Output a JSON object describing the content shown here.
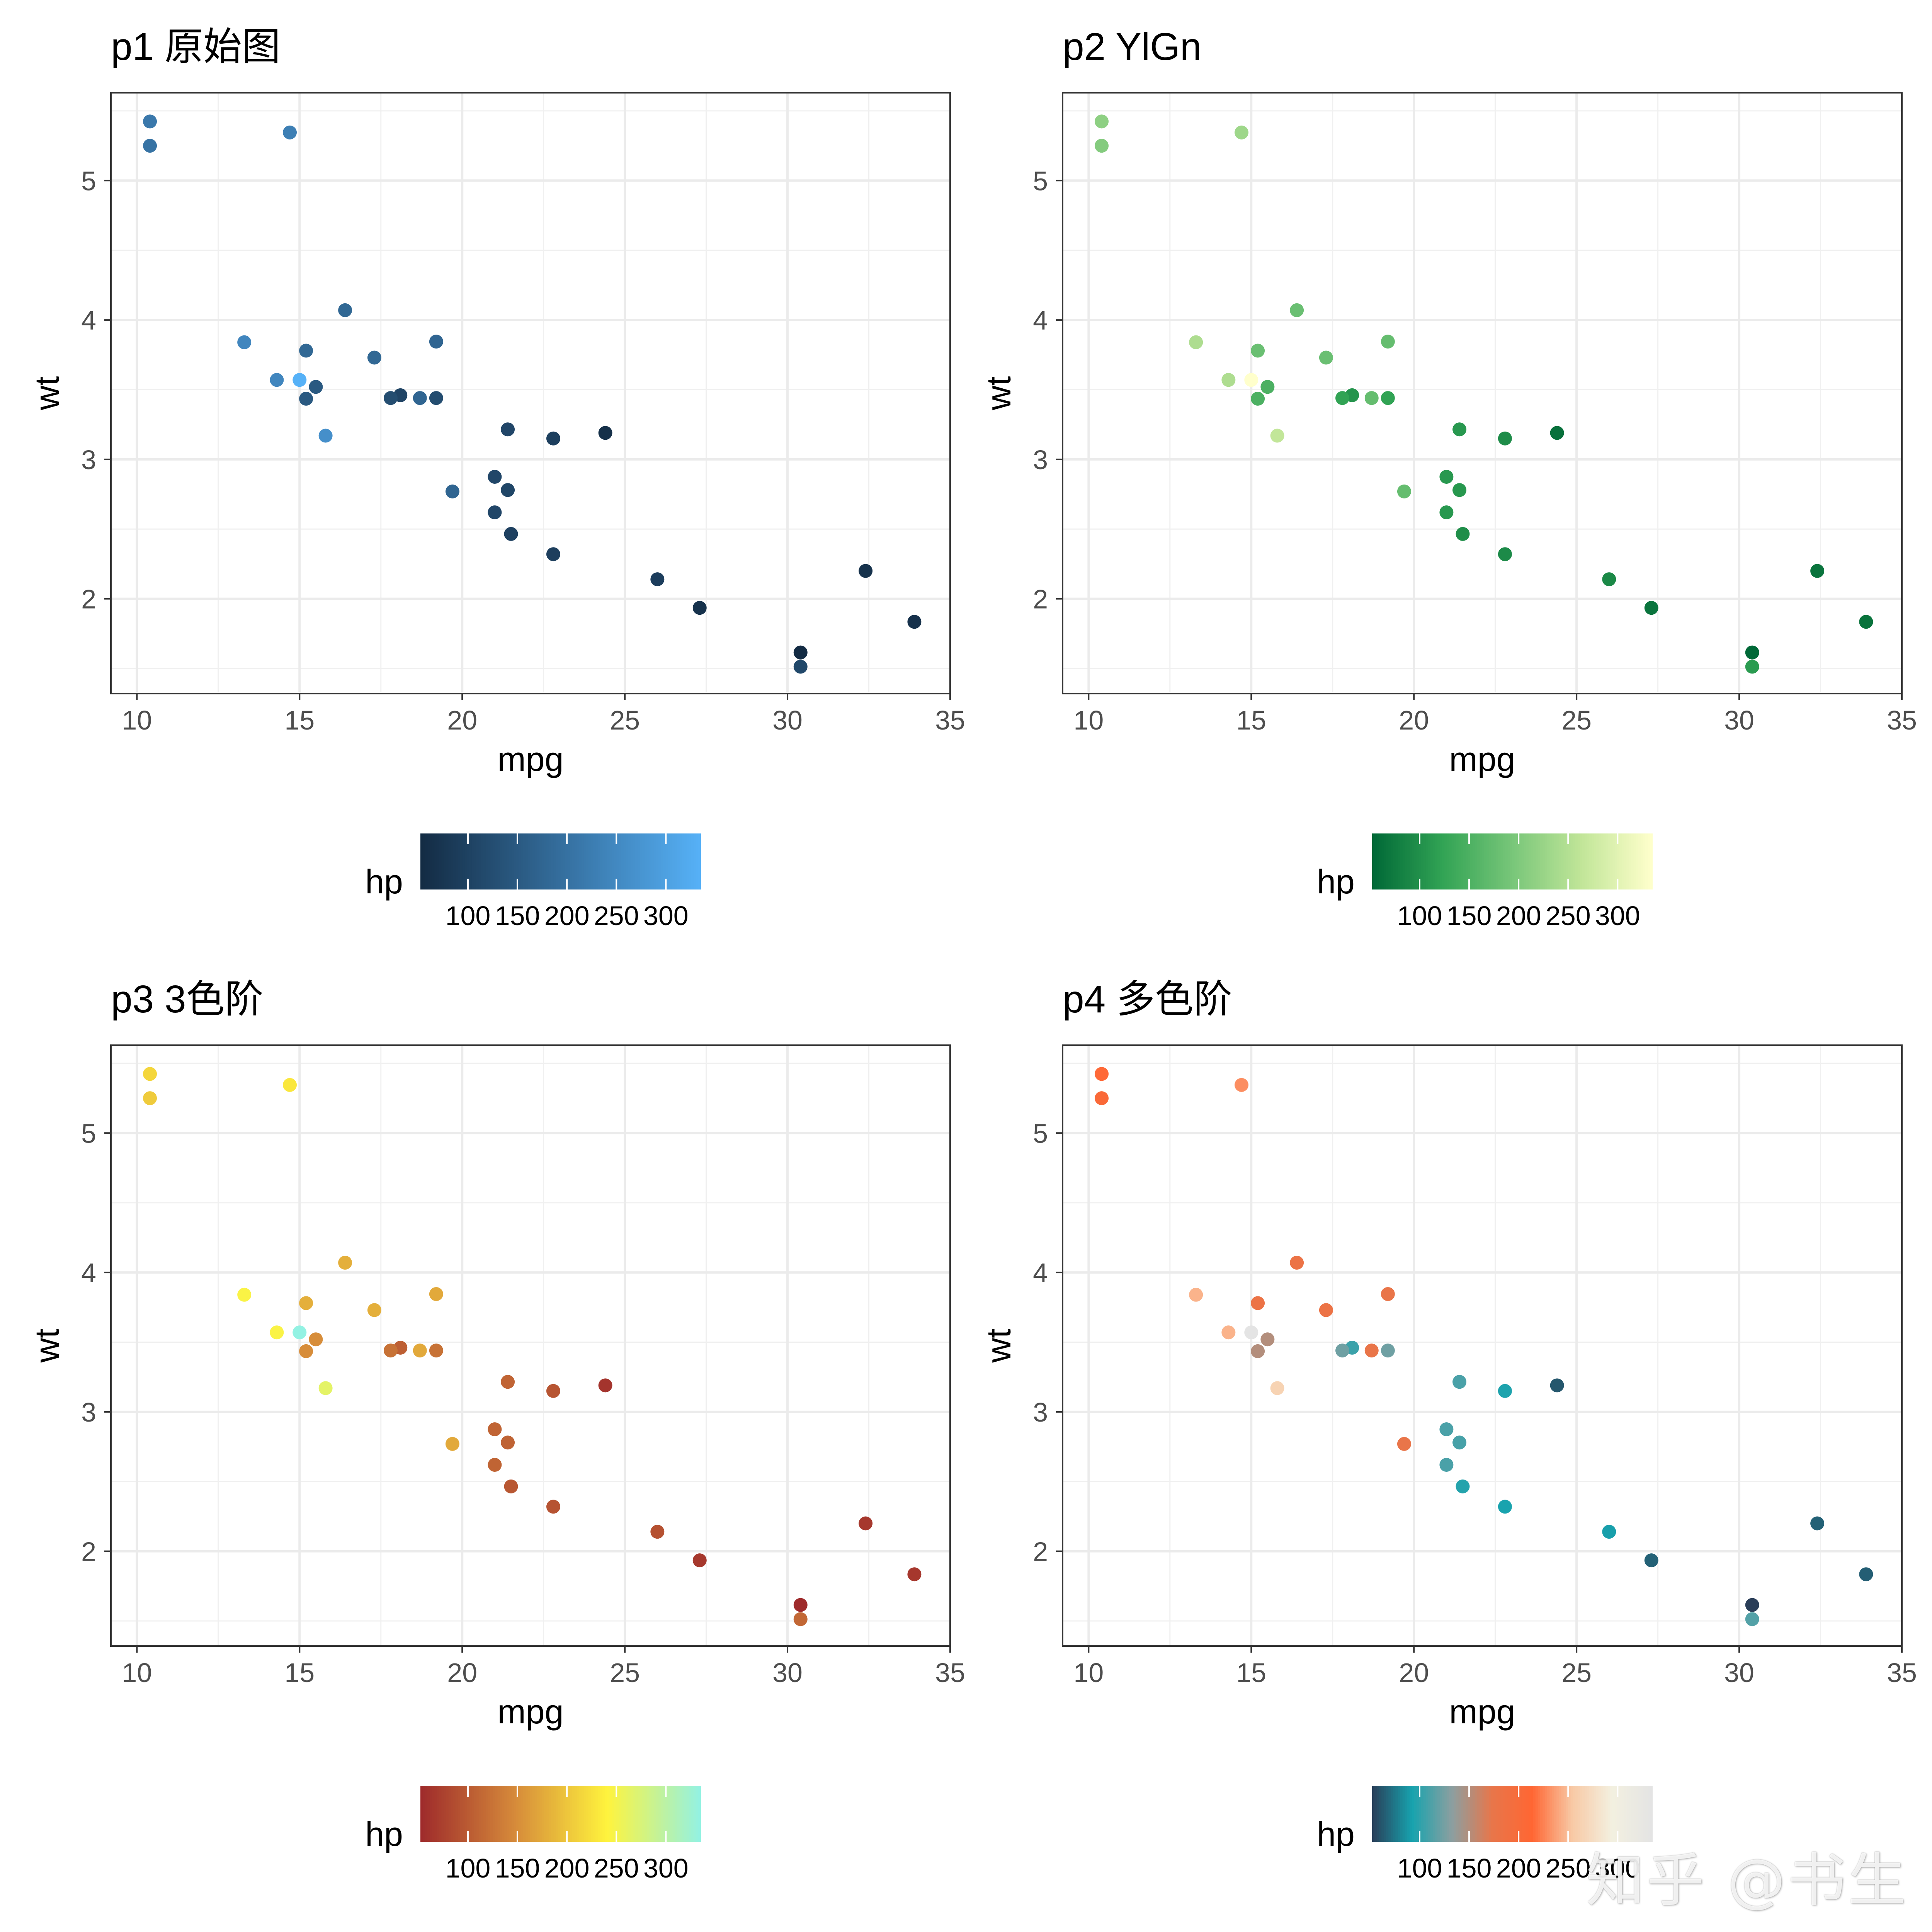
{
  "watermark": "知乎 @书生",
  "chart_data": [
    {
      "type": "scatter",
      "title": "p1 原始图",
      "xlabel": "mpg",
      "ylabel": "wt",
      "xlim": [
        9.2,
        35.0
      ],
      "ylim": [
        1.32,
        5.63
      ],
      "xticks": [
        10,
        15,
        20,
        25,
        30,
        35
      ],
      "yticks": [
        2,
        3,
        4,
        5
      ],
      "legend": {
        "title": "hp",
        "position": "bottom",
        "tick_labels": [
          "100",
          "150",
          "200",
          "250",
          "300"
        ],
        "range": [
          52,
          335
        ]
      },
      "colors": [
        "#132B43",
        "#56B1F7"
      ],
      "x": [
        21.0,
        21.0,
        22.8,
        21.4,
        18.7,
        18.1,
        14.3,
        24.4,
        22.8,
        19.2,
        17.8,
        16.4,
        17.3,
        15.2,
        10.4,
        10.4,
        14.7,
        32.4,
        30.4,
        33.9,
        21.5,
        15.5,
        15.2,
        13.3,
        19.2,
        27.3,
        26.0,
        30.4,
        15.8,
        19.7,
        15.0,
        21.4
      ],
      "y": [
        2.62,
        2.875,
        2.32,
        3.215,
        3.44,
        3.46,
        3.57,
        3.19,
        3.15,
        3.44,
        3.44,
        4.07,
        3.73,
        3.78,
        5.25,
        5.424,
        5.345,
        2.2,
        1.615,
        1.835,
        2.465,
        3.52,
        3.435,
        3.84,
        3.845,
        1.935,
        2.14,
        1.513,
        3.17,
        2.77,
        3.57,
        2.78
      ],
      "hp": [
        110,
        110,
        93,
        110,
        175,
        105,
        245,
        62,
        95,
        123,
        123,
        180,
        180,
        180,
        205,
        215,
        230,
        66,
        52,
        65,
        97,
        150,
        150,
        245,
        175,
        66,
        91,
        113,
        264,
        175,
        335,
        109
      ]
    },
    {
      "type": "scatter",
      "title": "p2 YlGn",
      "xlabel": "mpg",
      "ylabel": "wt",
      "xlim": [
        9.2,
        35.0
      ],
      "ylim": [
        1.32,
        5.63
      ],
      "xticks": [
        10,
        15,
        20,
        25,
        30,
        35
      ],
      "yticks": [
        2,
        3,
        4,
        5
      ],
      "legend": {
        "title": "hp",
        "position": "bottom",
        "tick_labels": [
          "100",
          "150",
          "200",
          "250",
          "300"
        ],
        "range": [
          52,
          335
        ]
      },
      "colors": [
        "#006837",
        "#31A354",
        "#78C679",
        "#C2E699",
        "#FFFFCC"
      ],
      "x": [
        21.0,
        21.0,
        22.8,
        21.4,
        18.7,
        18.1,
        14.3,
        24.4,
        22.8,
        19.2,
        17.8,
        16.4,
        17.3,
        15.2,
        10.4,
        10.4,
        14.7,
        32.4,
        30.4,
        33.9,
        21.5,
        15.5,
        15.2,
        13.3,
        19.2,
        27.3,
        26.0,
        30.4,
        15.8,
        19.7,
        15.0,
        21.4
      ],
      "y": [
        2.62,
        2.875,
        2.32,
        3.215,
        3.44,
        3.46,
        3.57,
        3.19,
        3.15,
        3.44,
        3.44,
        4.07,
        3.73,
        3.78,
        5.25,
        5.424,
        5.345,
        2.2,
        1.615,
        1.835,
        2.465,
        3.52,
        3.435,
        3.84,
        3.845,
        1.935,
        2.14,
        1.513,
        3.17,
        2.77,
        3.57,
        2.78
      ],
      "hp": [
        110,
        110,
        93,
        110,
        175,
        105,
        245,
        62,
        95,
        123,
        123,
        180,
        180,
        180,
        205,
        215,
        230,
        66,
        52,
        65,
        97,
        150,
        150,
        245,
        175,
        66,
        91,
        113,
        264,
        175,
        335,
        109
      ]
    },
    {
      "type": "scatter",
      "title": "p3 3色阶",
      "xlabel": "mpg",
      "ylabel": "wt",
      "xlim": [
        9.2,
        35.0
      ],
      "ylim": [
        1.32,
        5.63
      ],
      "xticks": [
        10,
        15,
        20,
        25,
        30,
        35
      ],
      "yticks": [
        2,
        3,
        4,
        5
      ],
      "legend": {
        "title": "hp",
        "position": "bottom",
        "tick_labels": [
          "100",
          "150",
          "200",
          "250",
          "300"
        ],
        "range": [
          52,
          335
        ]
      },
      "colors": [
        "#9E2A2B",
        "#D5893A",
        "#FFF33D",
        "#93F2E3"
      ],
      "x": [
        21.0,
        21.0,
        22.8,
        21.4,
        18.7,
        18.1,
        14.3,
        24.4,
        22.8,
        19.2,
        17.8,
        16.4,
        17.3,
        15.2,
        10.4,
        10.4,
        14.7,
        32.4,
        30.4,
        33.9,
        21.5,
        15.5,
        15.2,
        13.3,
        19.2,
        27.3,
        26.0,
        30.4,
        15.8,
        19.7,
        15.0,
        21.4
      ],
      "y": [
        2.62,
        2.875,
        2.32,
        3.215,
        3.44,
        3.46,
        3.57,
        3.19,
        3.15,
        3.44,
        3.44,
        4.07,
        3.73,
        3.78,
        5.25,
        5.424,
        5.345,
        2.2,
        1.615,
        1.835,
        2.465,
        3.52,
        3.435,
        3.84,
        3.845,
        1.935,
        2.14,
        1.513,
        3.17,
        2.77,
        3.57,
        2.78
      ],
      "hp": [
        110,
        110,
        93,
        110,
        175,
        105,
        245,
        62,
        95,
        123,
        123,
        180,
        180,
        180,
        205,
        215,
        230,
        66,
        52,
        65,
        97,
        150,
        150,
        245,
        175,
        66,
        91,
        113,
        264,
        175,
        335,
        109
      ]
    },
    {
      "type": "scatter",
      "title": "p4 多色阶",
      "xlabel": "mpg",
      "ylabel": "wt",
      "xlim": [
        9.2,
        35.0
      ],
      "ylim": [
        1.32,
        5.63
      ],
      "xticks": [
        10,
        15,
        20,
        25,
        30,
        35
      ],
      "yticks": [
        2,
        3,
        4,
        5
      ],
      "legend": {
        "title": "hp",
        "position": "bottom",
        "tick_labels": [
          "100",
          "150",
          "200",
          "250",
          "300"
        ],
        "range": [
          52,
          335
        ]
      },
      "colors": [
        "#2A3E58",
        "#17A3AE",
        "#8C9FA0",
        "#E8764A",
        "#FF6633",
        "#F8C9A5",
        "#F3F0E0",
        "#E4E4E4"
      ],
      "x": [
        21.0,
        21.0,
        22.8,
        21.4,
        18.7,
        18.1,
        14.3,
        24.4,
        22.8,
        19.2,
        17.8,
        16.4,
        17.3,
        15.2,
        10.4,
        10.4,
        14.7,
        32.4,
        30.4,
        33.9,
        21.5,
        15.5,
        15.2,
        13.3,
        19.2,
        27.3,
        26.0,
        30.4,
        15.8,
        19.7,
        15.0,
        21.4
      ],
      "y": [
        2.62,
        2.875,
        2.32,
        3.215,
        3.44,
        3.46,
        3.57,
        3.19,
        3.15,
        3.44,
        3.44,
        4.07,
        3.73,
        3.78,
        5.25,
        5.424,
        5.345,
        2.2,
        1.615,
        1.835,
        2.465,
        3.52,
        3.435,
        3.84,
        3.845,
        1.935,
        2.14,
        1.513,
        3.17,
        2.77,
        3.57,
        2.78
      ],
      "hp": [
        110,
        110,
        93,
        110,
        175,
        105,
        245,
        62,
        95,
        123,
        123,
        180,
        180,
        180,
        205,
        215,
        230,
        66,
        52,
        65,
        97,
        150,
        150,
        245,
        175,
        66,
        91,
        113,
        264,
        175,
        335,
        109
      ]
    }
  ]
}
